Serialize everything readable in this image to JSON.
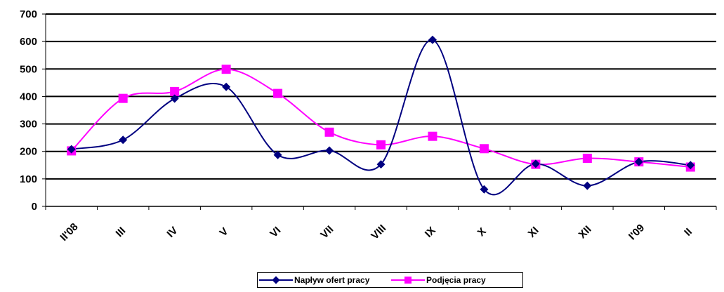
{
  "chart_data": {
    "type": "line",
    "title": "",
    "xlabel": "",
    "ylabel": "",
    "categories": [
      "II'08",
      "III",
      "IV",
      "V",
      "VI",
      "VII",
      "VIII",
      "IX",
      "X",
      "XI",
      "XII",
      "I'09",
      "II"
    ],
    "ylim": [
      0,
      700
    ],
    "yticks": [
      0,
      100,
      200,
      300,
      400,
      500,
      600,
      700
    ],
    "grid": true,
    "smooth": true,
    "legend_position": "bottom",
    "series": [
      {
        "name": "Napływ ofert pracy",
        "color": "#000080",
        "marker": "diamond",
        "values": [
          208,
          242,
          392,
          435,
          187,
          203,
          153,
          606,
          62,
          155,
          75,
          162,
          150
        ]
      },
      {
        "name": "Podjęcia pracy",
        "color": "#FF00FF",
        "marker": "square",
        "values": [
          202,
          393,
          418,
          499,
          411,
          270,
          224,
          255,
          210,
          153,
          175,
          162,
          143
        ]
      }
    ]
  }
}
